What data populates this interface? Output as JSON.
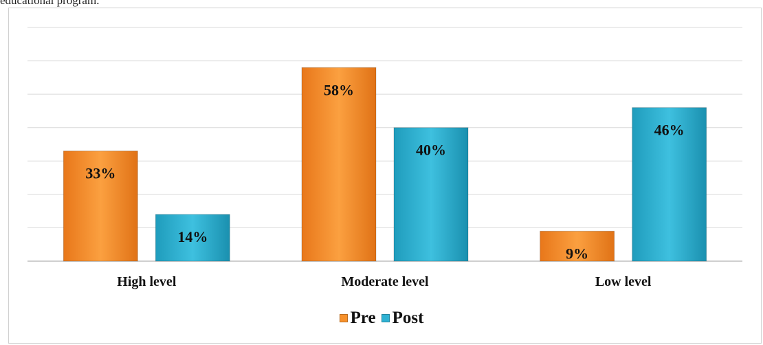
{
  "caption": "educational program.",
  "chart_data": {
    "type": "bar",
    "categories": [
      "High level",
      "Moderate level",
      "Low level"
    ],
    "series": [
      {
        "name": "Pre",
        "values": [
          33,
          58,
          9
        ],
        "labels": [
          "33%",
          "58%",
          "9%"
        ],
        "color": "#F7912B"
      },
      {
        "name": "Post",
        "values": [
          14,
          40,
          46
        ],
        "labels": [
          "14%",
          "40%",
          "46%"
        ],
        "color": "#2FB2D3"
      }
    ],
    "ylim": [
      0,
      70
    ],
    "grid": true,
    "legend": "bottom-center"
  }
}
